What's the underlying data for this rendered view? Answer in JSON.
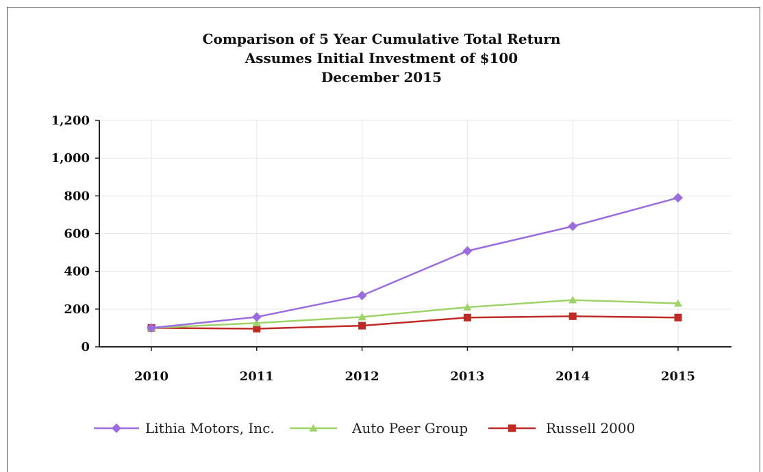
{
  "chart_data": {
    "type": "line",
    "title_lines": [
      "Comparison of 5 Year Cumulative Total Return",
      "Assumes Initial Investment of $100",
      "December 2015"
    ],
    "xlabel": "",
    "ylabel": "",
    "categories": [
      "2010",
      "2011",
      "2012",
      "2013",
      "2014",
      "2015"
    ],
    "ylim": [
      0,
      1200
    ],
    "yticks": [
      0,
      200,
      400,
      600,
      800,
      1000,
      1200
    ],
    "ytick_labels": [
      "0",
      "200",
      "400",
      "600",
      "800",
      "1,000",
      "1,200"
    ],
    "grid": true,
    "legend_position": "bottom",
    "series": [
      {
        "name": "Lithia Motors, Inc.",
        "color": "#9b6cdf",
        "marker": "diamond",
        "values": [
          100,
          158,
          272,
          508,
          639,
          790
        ]
      },
      {
        "name": "Auto Peer Group",
        "color": "#9ed36a",
        "marker": "triangle",
        "values": [
          100,
          126,
          158,
          210,
          248,
          230
        ]
      },
      {
        "name": "Russell 2000",
        "color": "#bf2a24",
        "marker": "square",
        "values": [
          100,
          96,
          112,
          155,
          162,
          155
        ]
      }
    ]
  }
}
